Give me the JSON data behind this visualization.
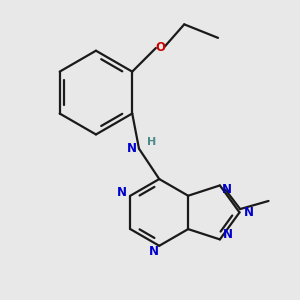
{
  "background_color": "#e8e8e8",
  "bond_color": "#1a1a1a",
  "N_color": "#0000cc",
  "O_color": "#cc0000",
  "H_color": "#4a8a8a",
  "figsize": [
    3.0,
    3.0
  ],
  "dpi": 100,
  "lw": 1.6,
  "fs": 8.5,
  "xlim": [
    -0.5,
    3.8
  ],
  "ylim": [
    -1.2,
    3.2
  ]
}
